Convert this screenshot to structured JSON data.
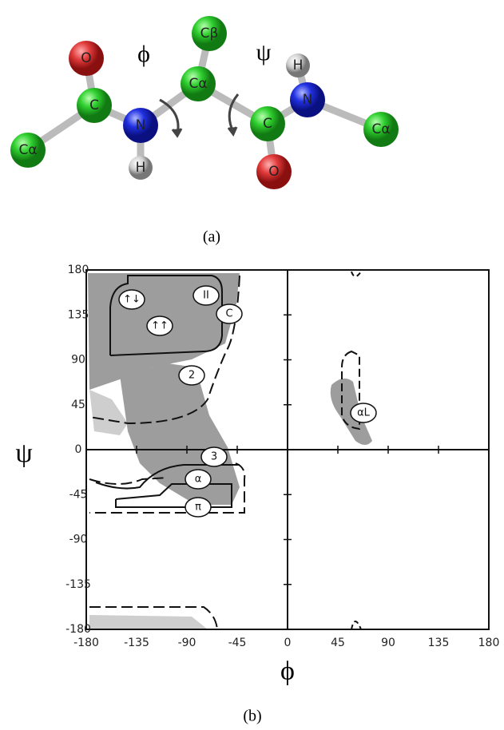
{
  "diagram": {
    "atoms": [
      "O",
      "C",
      "Cα",
      "N",
      "H",
      "Cβ",
      "Cα",
      "C",
      "O",
      "N",
      "H",
      "Cα"
    ],
    "angles": [
      "ϕ",
      "ψ"
    ]
  },
  "panel_labels": [
    "(a)",
    "(b)"
  ],
  "chart_data": {
    "type": "scatter",
    "x_label": "ϕ",
    "y_label": "ψ",
    "xlim": [
      -180,
      180
    ],
    "ylim": [
      -180,
      180
    ],
    "xticks": [
      -180,
      -135,
      -90,
      -45,
      0,
      45,
      90,
      135,
      180
    ],
    "yticks": [
      -180,
      -135,
      -90,
      -45,
      0,
      45,
      90,
      135,
      180
    ],
    "annotations": [
      "↑↓",
      "II",
      "C",
      "↑↑",
      "2",
      "αL",
      "3",
      "α",
      "π"
    ]
  }
}
